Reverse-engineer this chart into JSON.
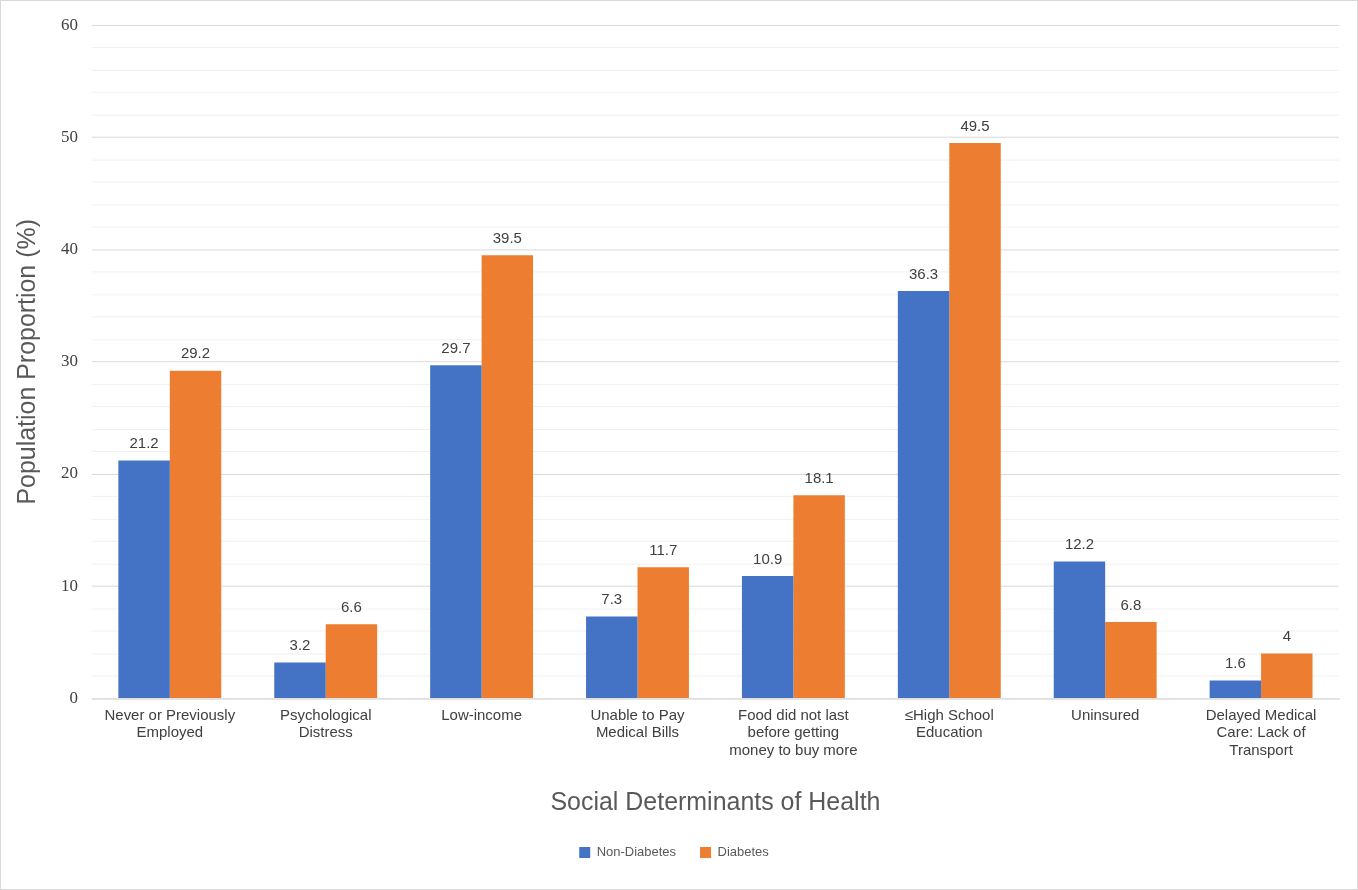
{
  "chart_data": {
    "type": "bar",
    "xlabel": "Social Determinants of Health",
    "ylabel": "Population Proportion (%)",
    "categories": [
      "Never or Previously Employed",
      "Psychological Distress",
      "Low-income",
      "Unable to Pay Medical Bills",
      "Food did not last before getting money to buy more",
      "≤High School Education",
      "Uninsured",
      "Delayed Medical Care: Lack of Transport"
    ],
    "series": [
      {
        "name": "Non-Diabetes",
        "color": "#4472c4",
        "values": [
          21.2,
          3.2,
          29.7,
          7.3,
          10.9,
          36.3,
          12.2,
          1.6
        ]
      },
      {
        "name": "Diabetes",
        "color": "#ed7d31",
        "values": [
          29.2,
          6.6,
          39.5,
          11.7,
          18.1,
          49.5,
          6.8,
          4
        ]
      }
    ],
    "ylim": [
      0,
      60
    ],
    "yticks": [
      0,
      {
        "value": 2,
        "label": null
      },
      {
        "value": 4,
        "label": null
      },
      {
        "value": 6,
        "label": null
      },
      {
        "value": 8,
        "label": null
      },
      10,
      {
        "value": 12,
        "label": null
      },
      {
        "value": 14,
        "label": null
      },
      {
        "value": 16,
        "label": null
      },
      {
        "value": 18,
        "label": null
      },
      20,
      {
        "value": 22,
        "label": null
      },
      {
        "value": 24,
        "label": null
      },
      {
        "value": 26,
        "label": null
      },
      {
        "value": 28,
        "label": null
      },
      30,
      {
        "value": 32,
        "label": null
      },
      {
        "value": 34,
        "label": null
      },
      {
        "value": 36,
        "label": null
      },
      {
        "value": 38,
        "label": null
      },
      40,
      {
        "value": 42,
        "label": null
      },
      {
        "value": 44,
        "label": null
      },
      {
        "value": 46,
        "label": null
      },
      {
        "value": 48,
        "label": null
      },
      50,
      {
        "value": 52,
        "label": null
      },
      {
        "value": 54,
        "label": null
      },
      {
        "value": 56,
        "label": null
      },
      {
        "value": 58,
        "label": null
      },
      60
    ],
    "grid": "y",
    "legend": "bottom",
    "data_labels": true
  }
}
